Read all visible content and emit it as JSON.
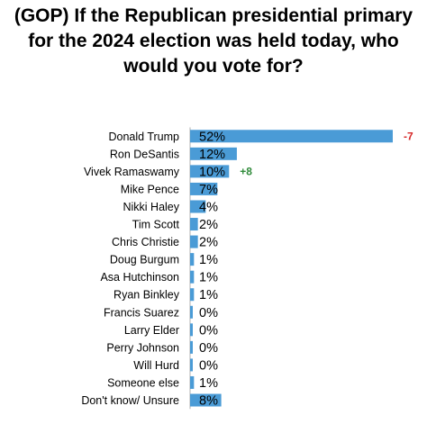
{
  "title_lines": [
    "(GOP) If the Republican presidential primary",
    "for the 2024 election was held today, who",
    "would you vote for?"
  ],
  "colors": {
    "bar": "#4a9bd6",
    "axis": "#b0b0b0",
    "change_negative": "#d62828",
    "change_positive": "#2f8a3a"
  },
  "chart_data": {
    "type": "bar",
    "orientation": "horizontal",
    "title": "(GOP) If the Republican presidential primary for the 2024 election was held today, who would you vote for?",
    "xlim": [
      0,
      60
    ],
    "grid": false,
    "categories": [
      "Donald Trump",
      "Ron DeSantis",
      "Vivek Ramaswamy",
      "Mike Pence",
      "Nikki Haley",
      "Tim Scott",
      "Chris Christie",
      "Doug Burgum",
      "Asa Hutchinson",
      "Ryan Binkley",
      "Francis Suarez",
      "Larry Elder",
      "Perry Johnson",
      "Will Hurd",
      "Someone else",
      "Don't know/ Unsure"
    ],
    "values": [
      52,
      12,
      10,
      7,
      4,
      2,
      2,
      1,
      1,
      1,
      0,
      0,
      0,
      0,
      1,
      8
    ],
    "value_labels": [
      "52%",
      "12%",
      "10%",
      "7%",
      "4%",
      "2%",
      "2%",
      "1%",
      "1%",
      "1%",
      "0%",
      "0%",
      "0%",
      "0%",
      "1%",
      "8%"
    ],
    "annotations": [
      {
        "category": "Donald Trump",
        "text": "-7",
        "sign": "negative"
      },
      {
        "category": "Vivek Ramaswamy",
        "text": "+8",
        "sign": "positive"
      }
    ]
  }
}
